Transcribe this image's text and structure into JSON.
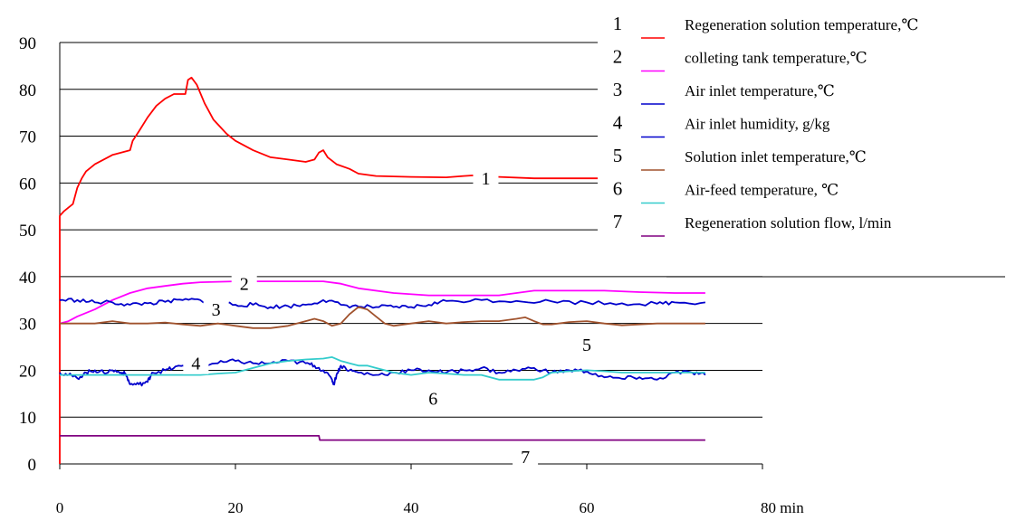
{
  "chart_data": {
    "type": "line",
    "title": "",
    "xlabel": "",
    "ylabel": "",
    "x_unit_label": "80 min",
    "xlim": [
      0,
      80
    ],
    "ylim": [
      0,
      90
    ],
    "x_ticks": [
      "0",
      "20",
      "40",
      "60"
    ],
    "y_ticks": [
      "0",
      "10",
      "20",
      "30",
      "40",
      "50",
      "60",
      "70",
      "80",
      "90"
    ],
    "grid": "horizontal",
    "legend_placement": "top-right",
    "legend": [
      {
        "num": "1",
        "label": "Regeneration solution temperature,℃"
      },
      {
        "num": "2",
        "label": "colleting tank temperature,℃"
      },
      {
        "num": "3",
        "label": "Air inlet temperature,℃"
      },
      {
        "num": "4",
        "label": "Air inlet humidity, g/kg"
      },
      {
        "num": "5",
        "label": "Solution inlet temperature,℃"
      },
      {
        "num": "6",
        "label": "Air-feed temperature, ℃"
      },
      {
        "num": "7",
        "label": "Regeneration solution flow, l/min"
      }
    ],
    "series": [
      {
        "num": "1",
        "color": "#ff0000",
        "points": [
          [
            0,
            53
          ],
          [
            0.5,
            54
          ],
          [
            1.5,
            55.5
          ],
          [
            2,
            59
          ],
          [
            2.5,
            61
          ],
          [
            3,
            62.5
          ],
          [
            4,
            64
          ],
          [
            5,
            65
          ],
          [
            6,
            66
          ],
          [
            8,
            67
          ],
          [
            8.3,
            69
          ],
          [
            9,
            71
          ],
          [
            10,
            74
          ],
          [
            11,
            76.5
          ],
          [
            12,
            78
          ],
          [
            13,
            79
          ],
          [
            14.3,
            79
          ],
          [
            14.6,
            82
          ],
          [
            15,
            82.5
          ],
          [
            15.6,
            81
          ],
          [
            16.5,
            77
          ],
          [
            17.5,
            73.5
          ],
          [
            19,
            70.5
          ],
          [
            20,
            69
          ],
          [
            22,
            67
          ],
          [
            24,
            65.5
          ],
          [
            26,
            65
          ],
          [
            28,
            64.5
          ],
          [
            29,
            65
          ],
          [
            29.5,
            66.5
          ],
          [
            30,
            67
          ],
          [
            30.5,
            65.5
          ],
          [
            31.5,
            64
          ],
          [
            33,
            63
          ],
          [
            34,
            62
          ],
          [
            36,
            61.5
          ],
          [
            40,
            61.3
          ],
          [
            44,
            61.2
          ],
          [
            46,
            61.5
          ],
          [
            47,
            61.6
          ],
          [
            50,
            61.3
          ],
          [
            54,
            61
          ],
          [
            58,
            61
          ],
          [
            62,
            61
          ],
          [
            66,
            61
          ],
          [
            70,
            61
          ],
          [
            73.5,
            61
          ]
        ]
      },
      {
        "num": "2",
        "color": "#ff00ff",
        "points": [
          [
            0,
            30
          ],
          [
            1,
            30.5
          ],
          [
            2,
            31.5
          ],
          [
            4,
            33
          ],
          [
            6,
            35
          ],
          [
            8,
            36.5
          ],
          [
            10,
            37.5
          ],
          [
            12,
            38
          ],
          [
            14,
            38.5
          ],
          [
            16,
            38.8
          ],
          [
            20,
            39
          ],
          [
            24,
            39
          ],
          [
            26,
            39
          ],
          [
            30,
            39
          ],
          [
            32,
            38.5
          ],
          [
            34,
            37.5
          ],
          [
            38,
            36.5
          ],
          [
            42,
            36
          ],
          [
            46,
            36
          ],
          [
            50,
            36
          ],
          [
            52,
            36.5
          ],
          [
            54,
            37
          ],
          [
            58,
            37
          ],
          [
            62,
            37
          ],
          [
            66,
            36.7
          ],
          [
            70,
            36.5
          ],
          [
            73.5,
            36.5
          ]
        ]
      },
      {
        "num": "3",
        "color": "#0000cc",
        "points": [
          [
            0,
            35
          ],
          [
            2,
            35
          ],
          [
            4,
            34.5
          ],
          [
            6,
            34.5
          ],
          [
            8,
            34
          ],
          [
            10,
            34.3
          ],
          [
            12,
            34.6
          ],
          [
            14,
            35
          ],
          [
            16,
            35
          ],
          [
            18,
            34.5
          ],
          [
            20,
            34
          ],
          [
            22,
            34
          ],
          [
            24,
            33.5
          ],
          [
            26,
            33.7
          ],
          [
            28,
            34
          ],
          [
            30,
            35
          ],
          [
            32,
            34
          ],
          [
            34,
            33.6
          ],
          [
            36,
            33.5
          ],
          [
            38,
            33.5
          ],
          [
            40,
            33.5
          ],
          [
            42,
            34
          ],
          [
            44,
            34.8
          ],
          [
            48,
            35
          ],
          [
            52,
            34.8
          ],
          [
            56,
            34.7
          ],
          [
            60,
            34.5
          ],
          [
            64,
            34.3
          ],
          [
            68,
            34.2
          ],
          [
            70,
            34.5
          ],
          [
            73.5,
            34.5
          ]
        ]
      },
      {
        "num": "4",
        "color": "#0000cc",
        "points": [
          [
            0,
            19.5
          ],
          [
            1,
            19
          ],
          [
            2,
            18.3
          ],
          [
            3,
            19.5
          ],
          [
            4,
            20
          ],
          [
            5,
            19.5
          ],
          [
            6,
            20
          ],
          [
            7,
            19.5
          ],
          [
            7.5,
            19.2
          ],
          [
            8,
            17
          ],
          [
            9,
            17
          ],
          [
            10,
            17.5
          ],
          [
            10.5,
            19.5
          ],
          [
            12,
            20
          ],
          [
            13,
            20.5
          ],
          [
            14,
            21
          ],
          [
            16,
            21
          ],
          [
            18,
            21.5
          ],
          [
            20,
            22
          ],
          [
            22,
            21.5
          ],
          [
            24,
            21.5
          ],
          [
            26,
            22
          ],
          [
            28,
            21.5
          ],
          [
            29,
            21
          ],
          [
            30,
            20
          ],
          [
            31,
            18
          ],
          [
            31.2,
            17
          ],
          [
            31.5,
            19
          ],
          [
            32,
            21
          ],
          [
            33,
            20
          ],
          [
            34,
            19.5
          ],
          [
            36,
            19
          ],
          [
            38,
            19.5
          ],
          [
            40,
            20
          ],
          [
            42,
            20
          ],
          [
            44,
            19.5
          ],
          [
            46,
            20
          ],
          [
            48,
            20.5
          ],
          [
            50,
            19.5
          ],
          [
            52,
            20
          ],
          [
            54,
            20.5
          ],
          [
            56,
            19.5
          ],
          [
            58,
            20
          ],
          [
            60,
            19.8
          ],
          [
            62,
            18.5
          ],
          [
            64,
            18.2
          ],
          [
            66,
            18.5
          ],
          [
            68,
            18
          ],
          [
            70,
            19.5
          ],
          [
            72,
            19.5
          ],
          [
            73.5,
            19
          ]
        ]
      },
      {
        "num": "5",
        "color": "#a0522d",
        "points": [
          [
            0,
            30
          ],
          [
            2,
            30
          ],
          [
            4,
            30
          ],
          [
            6,
            30.5
          ],
          [
            8,
            30
          ],
          [
            10,
            30
          ],
          [
            12,
            30.2
          ],
          [
            14,
            29.8
          ],
          [
            16,
            29.5
          ],
          [
            18,
            30
          ],
          [
            20,
            29.5
          ],
          [
            22,
            29
          ],
          [
            24,
            29
          ],
          [
            26,
            29.5
          ],
          [
            28,
            30.5
          ],
          [
            29,
            31
          ],
          [
            30,
            30.5
          ],
          [
            31,
            29.5
          ],
          [
            32,
            30
          ],
          [
            33,
            32
          ],
          [
            34,
            33.5
          ],
          [
            35,
            33
          ],
          [
            36,
            31.5
          ],
          [
            37,
            30
          ],
          [
            38,
            29.5
          ],
          [
            40,
            30
          ],
          [
            42,
            30.5
          ],
          [
            44,
            30
          ],
          [
            46,
            30.3
          ],
          [
            48,
            30.5
          ],
          [
            50,
            30.5
          ],
          [
            52,
            31
          ],
          [
            53,
            31.3
          ],
          [
            54,
            30.5
          ],
          [
            55,
            29.8
          ],
          [
            56,
            29.8
          ],
          [
            58,
            30.3
          ],
          [
            60,
            30.5
          ],
          [
            62,
            30
          ],
          [
            64,
            29.6
          ],
          [
            66,
            29.8
          ],
          [
            68,
            30
          ],
          [
            70,
            30
          ],
          [
            73.5,
            30
          ]
        ]
      },
      {
        "num": "6",
        "color": "#33cccc",
        "points": [
          [
            0,
            19
          ],
          [
            2,
            19
          ],
          [
            4,
            19
          ],
          [
            6,
            19
          ],
          [
            8,
            19
          ],
          [
            10,
            19
          ],
          [
            12,
            19
          ],
          [
            14,
            19
          ],
          [
            16,
            19
          ],
          [
            18,
            19.3
          ],
          [
            20,
            19.5
          ],
          [
            22,
            20.5
          ],
          [
            24,
            21.5
          ],
          [
            26,
            22
          ],
          [
            28,
            22.3
          ],
          [
            30,
            22.5
          ],
          [
            31,
            22.8
          ],
          [
            32,
            22
          ],
          [
            33,
            21.5
          ],
          [
            34,
            21
          ],
          [
            35,
            21
          ],
          [
            36,
            20.5
          ],
          [
            37,
            20
          ],
          [
            38,
            19.5
          ],
          [
            40,
            19
          ],
          [
            42,
            19.5
          ],
          [
            44,
            19.3
          ],
          [
            46,
            19
          ],
          [
            48,
            19
          ],
          [
            50,
            18
          ],
          [
            52,
            18
          ],
          [
            54,
            18
          ],
          [
            55,
            18.5
          ],
          [
            56,
            19.5
          ],
          [
            58,
            19.8
          ],
          [
            60,
            20
          ],
          [
            62,
            19.8
          ],
          [
            64,
            19.5
          ],
          [
            66,
            19.5
          ],
          [
            68,
            19.5
          ],
          [
            70,
            19.5
          ],
          [
            73.5,
            19.5
          ]
        ]
      },
      {
        "num": "7",
        "color": "#800080",
        "points": [
          [
            0,
            6
          ],
          [
            10,
            6
          ],
          [
            20,
            6
          ],
          [
            29.5,
            6
          ],
          [
            29.6,
            5.1
          ],
          [
            40,
            5.1
          ],
          [
            50,
            5.1
          ],
          [
            60,
            5.1
          ],
          [
            73.5,
            5.1
          ]
        ]
      }
    ],
    "series_labels": [
      {
        "num": "1",
        "x": 48.5,
        "y": 61
      },
      {
        "num": "2",
        "x": 21,
        "y": 38.5
      },
      {
        "num": "3",
        "x": 17.8,
        "y": 33
      },
      {
        "num": "4",
        "x": 15.5,
        "y": 21.5
      },
      {
        "num": "5",
        "x": 60,
        "y": 25.5
      },
      {
        "num": "6",
        "x": 42.5,
        "y": 14
      },
      {
        "num": "7",
        "x": 53,
        "y": 1.5
      }
    ]
  }
}
